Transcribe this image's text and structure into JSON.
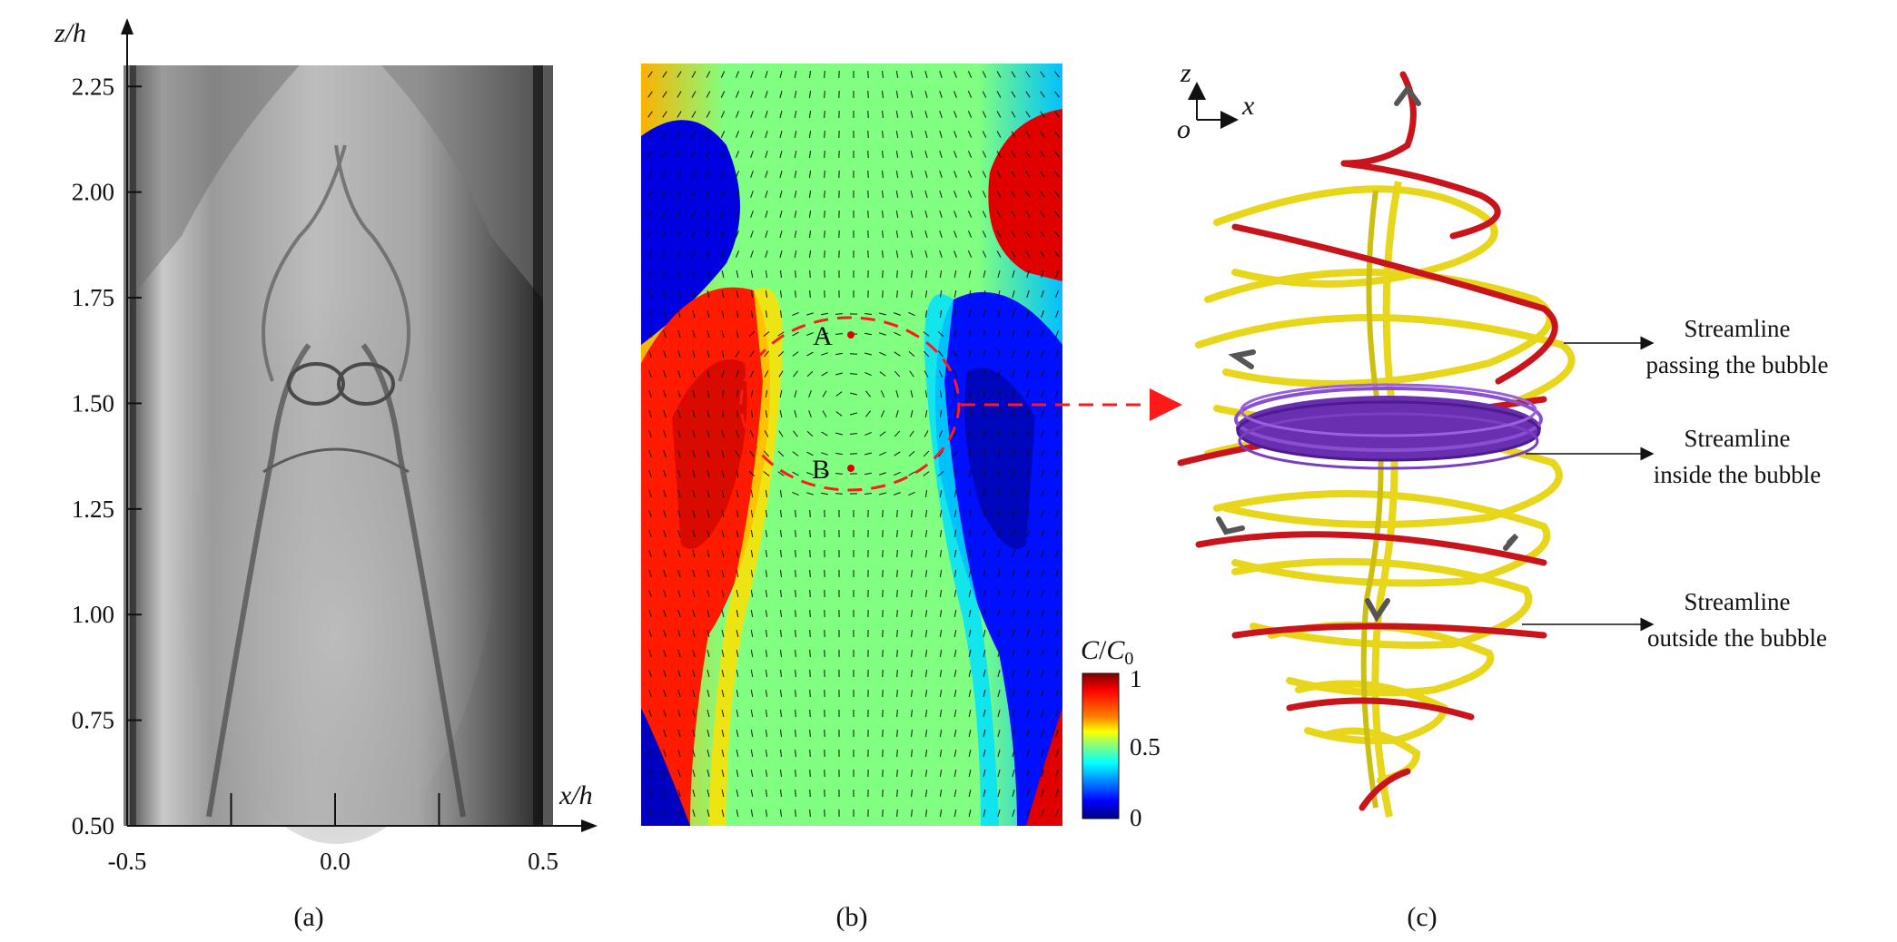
{
  "panels": {
    "a": {
      "label": "(a)"
    },
    "b": {
      "label": "(b)"
    },
    "c": {
      "label": "(c)"
    }
  },
  "chart_data": {
    "type": "image-plot",
    "xlabel": "x/h",
    "ylabel": "z/h",
    "xlim": [
      -0.5,
      0.5
    ],
    "ylim": [
      0.5,
      2.3
    ],
    "x_ticks": [
      "-0.5",
      "0.0",
      "0.5"
    ],
    "y_ticks": [
      "0.50",
      "0.75",
      "1.00",
      "1.25",
      "1.50",
      "1.75",
      "2.00",
      "2.25"
    ],
    "y_tick_values": [
      0.5,
      0.75,
      1.0,
      1.25,
      1.5,
      1.75,
      2.0,
      2.25
    ],
    "x_tick_values": [
      -0.5,
      0.0,
      0.5
    ]
  },
  "colorbar": {
    "title_c": "C",
    "title_sep": "/",
    "title_c0": "C",
    "title_sub": "0",
    "ticks": [
      "1",
      "0.5",
      "0"
    ],
    "colors": [
      "#800000",
      "#ff0000",
      "#ff8000",
      "#ffff00",
      "#80ff80",
      "#00ffff",
      "#0080ff",
      "#0000ff",
      "#000080"
    ]
  },
  "points": {
    "A": "A",
    "B": "B"
  },
  "axes3d": {
    "z": "z",
    "x": "x",
    "o": "o"
  },
  "annotations": [
    {
      "line1": "Streamline",
      "line2": "passing the bubble"
    },
    {
      "line1": "Streamline",
      "line2": "inside the bubble"
    },
    {
      "line1": "Streamline",
      "line2": "outside the bubble"
    }
  ]
}
